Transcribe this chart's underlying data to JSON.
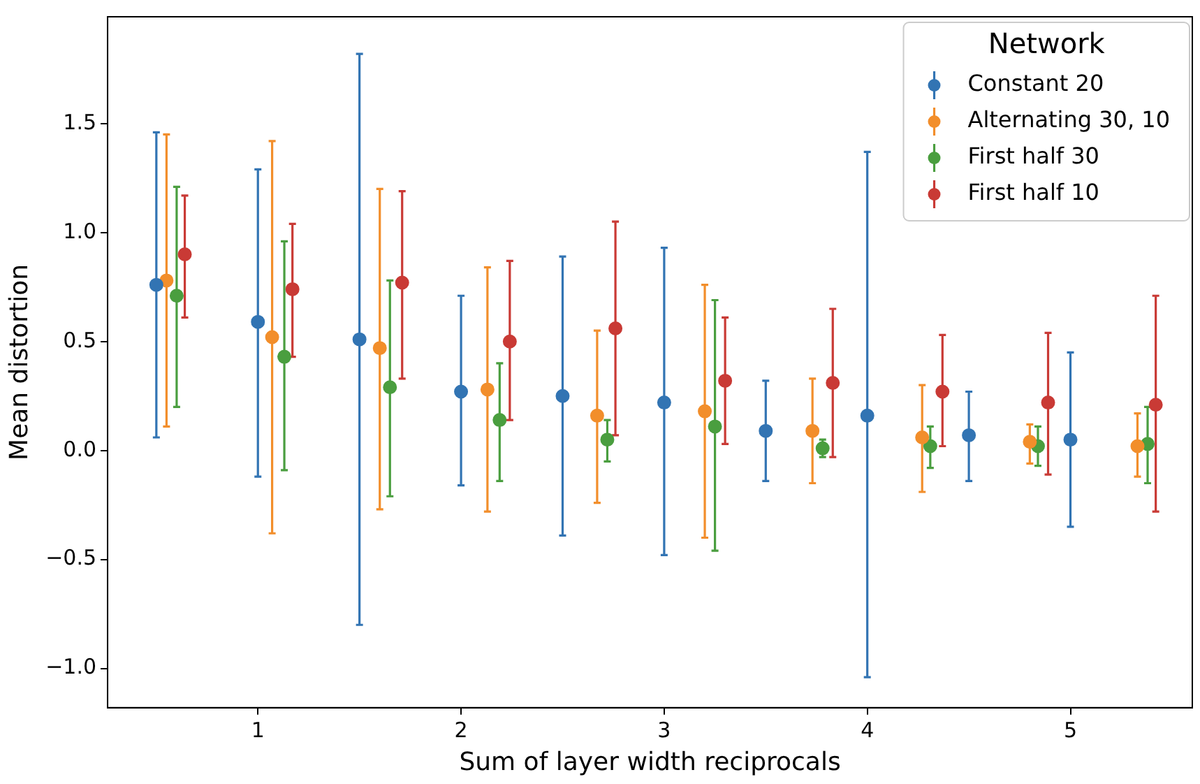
{
  "chart_data": {
    "type": "scatter",
    "xlabel": "Sum of layer width reciprocals",
    "ylabel": "Mean distortion",
    "legend_title": "Network",
    "legend": "top right",
    "marker": "circle",
    "grid": false,
    "xlim": [
      0.26,
      5.6
    ],
    "xticks": [
      1,
      2,
      3,
      4,
      5
    ],
    "ylim": [
      -1.18,
      1.99
    ],
    "yticks": [
      {
        "value": -1,
        "label": "−1.0"
      },
      -0.5,
      {
        "value": 0,
        "label": "0.0"
      },
      0.5,
      {
        "value": 1,
        "label": "1.0"
      },
      1.5
    ],
    "series": [
      {
        "name": "Constant 20",
        "color": "#3274b3",
        "x": [
          0.5,
          1.0,
          1.5,
          2.0,
          2.5,
          3.0,
          3.5,
          4.0,
          4.5,
          5.0
        ],
        "values": [
          0.76,
          0.59,
          0.51,
          0.27,
          0.25,
          0.22,
          0.09,
          0.16,
          0.07,
          0.05
        ],
        "errors": [
          [
            0.06,
            1.46
          ],
          [
            -0.12,
            1.29
          ],
          [
            -0.8,
            1.82
          ],
          [
            -0.16,
            0.71
          ],
          [
            -0.39,
            0.89
          ],
          [
            -0.48,
            0.93
          ],
          [
            -0.14,
            0.32
          ],
          [
            -1.04,
            1.37
          ],
          [
            -0.14,
            0.27
          ],
          [
            -0.35,
            0.45
          ]
        ]
      },
      {
        "name": "Alternating 30, 10",
        "color": "#f28e2b",
        "x": [
          0.55,
          1.07,
          1.6,
          2.13,
          2.67,
          3.2,
          3.73,
          4.27,
          4.8,
          5.33
        ],
        "values": [
          0.78,
          0.52,
          0.47,
          0.28,
          0.16,
          0.18,
          0.09,
          0.06,
          0.04,
          0.02
        ],
        "errors": [
          [
            0.11,
            1.45
          ],
          [
            -0.38,
            1.42
          ],
          [
            -0.27,
            1.2
          ],
          [
            -0.28,
            0.84
          ],
          [
            -0.24,
            0.55
          ],
          [
            -0.4,
            0.76
          ],
          [
            -0.15,
            0.33
          ],
          [
            -0.19,
            0.3
          ],
          [
            -0.06,
            0.12
          ],
          [
            -0.12,
            0.17
          ]
        ]
      },
      {
        "name": "First half 30",
        "color": "#4a9e3f",
        "x": [
          0.6,
          1.13,
          1.65,
          2.19,
          2.72,
          3.25,
          3.78,
          4.31,
          4.84,
          5.38
        ],
        "values": [
          0.71,
          0.43,
          0.29,
          0.14,
          0.05,
          0.11,
          0.01,
          0.02,
          0.02,
          0.03
        ],
        "errors": [
          [
            0.2,
            1.21
          ],
          [
            -0.09,
            0.96
          ],
          [
            -0.21,
            0.78
          ],
          [
            -0.14,
            0.4
          ],
          [
            -0.05,
            0.14
          ],
          [
            -0.46,
            0.69
          ],
          [
            -0.03,
            0.05
          ],
          [
            -0.08,
            0.11
          ],
          [
            -0.07,
            0.11
          ],
          [
            -0.15,
            0.2
          ]
        ]
      },
      {
        "name": "First half 10",
        "color": "#c93a35",
        "x": [
          0.64,
          1.17,
          1.71,
          2.24,
          2.76,
          3.3,
          3.83,
          4.37,
          4.89,
          5.42
        ],
        "values": [
          0.9,
          0.74,
          0.77,
          0.5,
          0.56,
          0.32,
          0.31,
          0.27,
          0.22,
          0.21
        ],
        "errors": [
          [
            0.61,
            1.17
          ],
          [
            0.43,
            1.04
          ],
          [
            0.33,
            1.19
          ],
          [
            0.14,
            0.87
          ],
          [
            0.07,
            1.05
          ],
          [
            0.03,
            0.61
          ],
          [
            -0.03,
            0.65
          ],
          [
            0.02,
            0.53
          ],
          [
            -0.11,
            0.54
          ],
          [
            -0.28,
            0.71
          ]
        ]
      }
    ]
  }
}
